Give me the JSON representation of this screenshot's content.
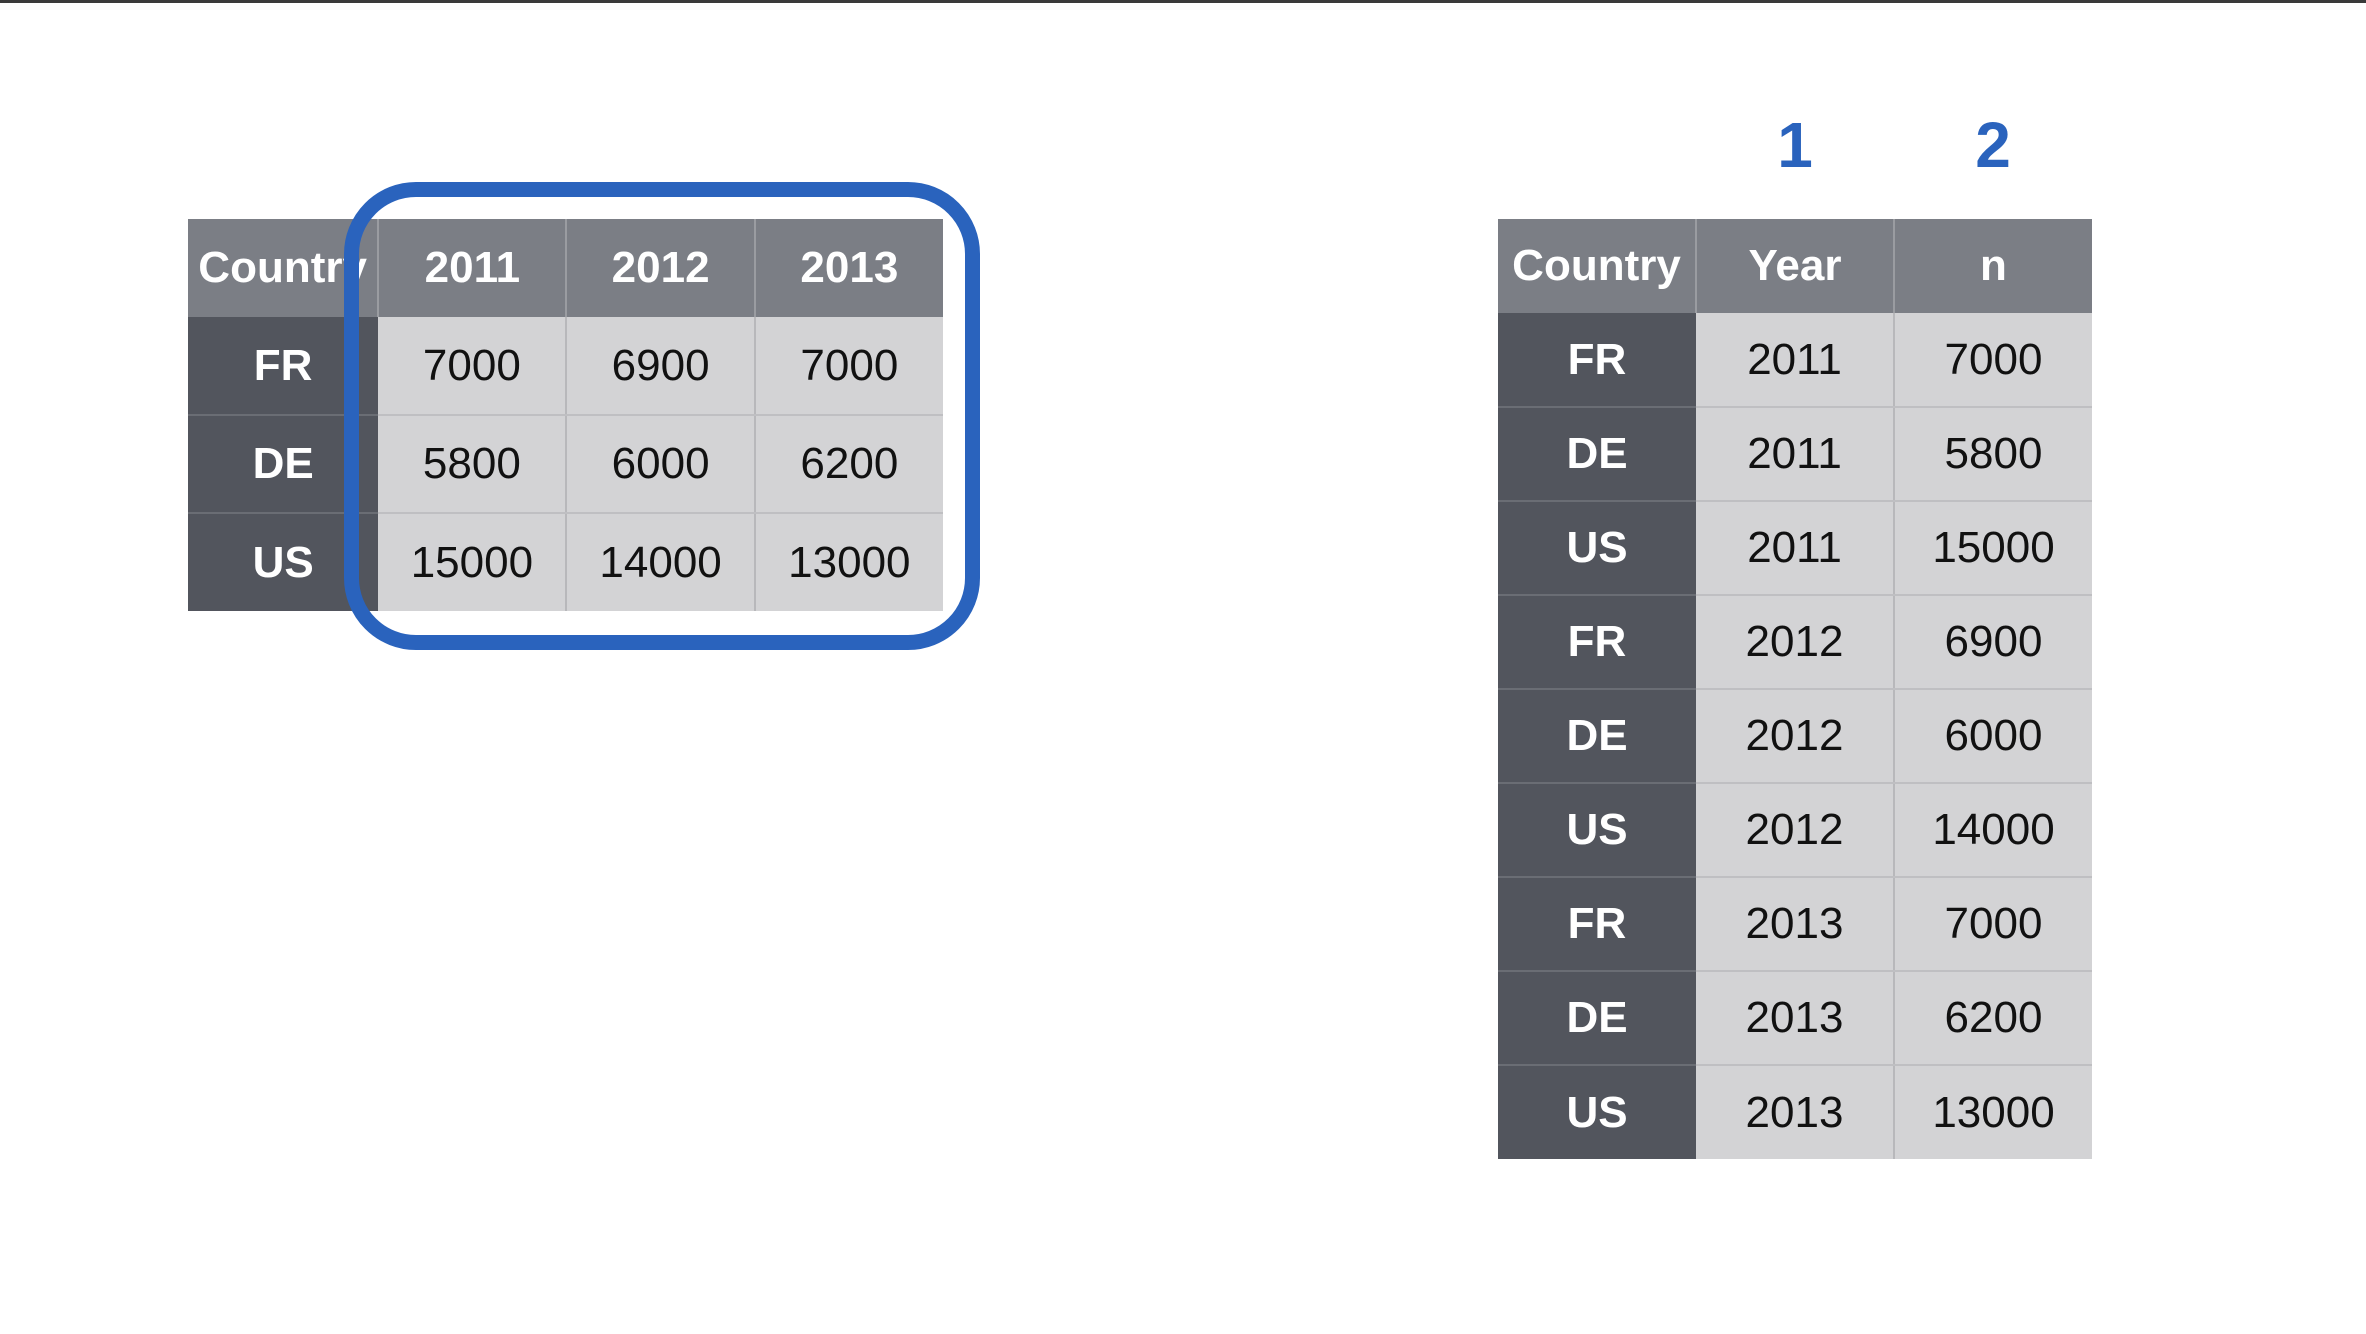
{
  "wide_table": {
    "headers": [
      "Country",
      "2011",
      "2012",
      "2013"
    ],
    "rows": [
      {
        "country": "FR",
        "values": [
          "7000",
          "6900",
          "7000"
        ]
      },
      {
        "country": "DE",
        "values": [
          "5800",
          "6000",
          "6200"
        ]
      },
      {
        "country": "US",
        "values": [
          "15000",
          "14000",
          "13000"
        ]
      }
    ]
  },
  "long_table": {
    "column_numbers": [
      "1",
      "2"
    ],
    "headers": [
      "Country",
      "Year",
      "n"
    ],
    "rows": [
      {
        "country": "FR",
        "year": "2011",
        "n": "7000"
      },
      {
        "country": "DE",
        "year": "2011",
        "n": "5800"
      },
      {
        "country": "US",
        "year": "2011",
        "n": "15000"
      },
      {
        "country": "FR",
        "year": "2012",
        "n": "6900"
      },
      {
        "country": "DE",
        "year": "2012",
        "n": "6000"
      },
      {
        "country": "US",
        "year": "2012",
        "n": "14000"
      },
      {
        "country": "FR",
        "year": "2013",
        "n": "7000"
      },
      {
        "country": "DE",
        "year": "2013",
        "n": "6200"
      },
      {
        "country": "US",
        "year": "2013",
        "n": "13000"
      }
    ]
  },
  "colors": {
    "highlight": "#2a63bd",
    "header_bg": "#7b7e85",
    "row_header_bg": "#52555d",
    "cell_bg": "#d3d3d5"
  }
}
